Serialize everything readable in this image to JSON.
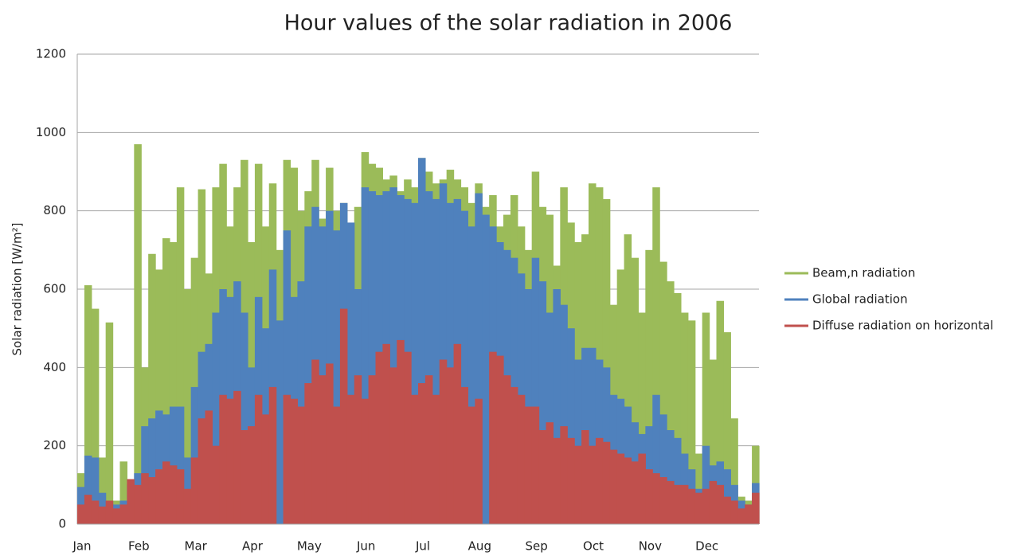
{
  "chart_data": {
    "type": "bar",
    "title": "Hour values of the solar radiation in 2006",
    "y_label": "Solar radiation [W/m²]",
    "categories": [
      "Jan",
      null,
      null,
      null,
      null,
      null,
      null,
      null,
      "Feb",
      null,
      null,
      null,
      null,
      null,
      null,
      null,
      "Mar",
      null,
      null,
      null,
      null,
      null,
      null,
      null,
      "Apr",
      null,
      null,
      null,
      null,
      null,
      null,
      null,
      "May",
      null,
      null,
      null,
      null,
      null,
      null,
      null,
      "Jun",
      null,
      null,
      null,
      null,
      null,
      null,
      null,
      "Jul",
      null,
      null,
      null,
      null,
      null,
      null,
      null,
      "Aug",
      null,
      null,
      null,
      null,
      null,
      null,
      null,
      "Sep",
      null,
      null,
      null,
      null,
      null,
      null,
      null,
      "Oct",
      null,
      null,
      null,
      null,
      null,
      null,
      null,
      "Nov",
      null,
      null,
      null,
      null,
      null,
      null,
      null,
      "Dec",
      null,
      null,
      null,
      null,
      null,
      null,
      null
    ],
    "series": [
      {
        "name": "Beam,n radiation",
        "color": "#9bbb59",
        "values": [
          130,
          610,
          550,
          170,
          515,
          60,
          160,
          110,
          970,
          400,
          690,
          650,
          730,
          720,
          860,
          600,
          680,
          855,
          640,
          860,
          920,
          760,
          860,
          930,
          720,
          920,
          760,
          870,
          700,
          930,
          910,
          800,
          850,
          930,
          780,
          910,
          800,
          820,
          700,
          810,
          950,
          920,
          910,
          880,
          890,
          850,
          880,
          860,
          935,
          900,
          870,
          880,
          905,
          880,
          860,
          820,
          870,
          810,
          840,
          760,
          790,
          840,
          760,
          700,
          900,
          810,
          790,
          660,
          860,
          770,
          720,
          740,
          870,
          860,
          830,
          560,
          650,
          740,
          680,
          540,
          700,
          860,
          670,
          620,
          590,
          540,
          520,
          180,
          540,
          420,
          570,
          490,
          270,
          70,
          60,
          200
        ]
      },
      {
        "name": "Global radiation",
        "color": "#4f81bd",
        "values": [
          95,
          175,
          170,
          80,
          60,
          50,
          60,
          100,
          130,
          250,
          270,
          290,
          280,
          300,
          300,
          170,
          350,
          440,
          460,
          540,
          600,
          580,
          620,
          540,
          400,
          580,
          500,
          650,
          520,
          750,
          580,
          620,
          760,
          810,
          760,
          800,
          750,
          820,
          770,
          600,
          860,
          850,
          840,
          850,
          860,
          840,
          830,
          820,
          935,
          850,
          830,
          870,
          820,
          830,
          800,
          760,
          845,
          790,
          760,
          720,
          700,
          680,
          640,
          600,
          680,
          620,
          540,
          600,
          560,
          500,
          420,
          450,
          450,
          420,
          400,
          330,
          320,
          300,
          260,
          230,
          250,
          330,
          280,
          240,
          220,
          180,
          140,
          90,
          200,
          150,
          160,
          140,
          100,
          60,
          50,
          105
        ]
      },
      {
        "name": "Diffuse radiation on horizontal",
        "color": "#c0504d",
        "values": [
          50,
          75,
          60,
          45,
          60,
          40,
          50,
          115,
          100,
          130,
          120,
          140,
          160,
          150,
          140,
          90,
          170,
          270,
          290,
          200,
          330,
          320,
          340,
          240,
          250,
          330,
          280,
          350,
          0,
          330,
          320,
          300,
          360,
          420,
          380,
          410,
          300,
          550,
          330,
          380,
          320,
          380,
          440,
          460,
          400,
          470,
          440,
          330,
          360,
          380,
          330,
          420,
          400,
          460,
          350,
          300,
          320,
          0,
          440,
          430,
          380,
          350,
          330,
          300,
          300,
          240,
          260,
          220,
          250,
          220,
          200,
          240,
          200,
          220,
          210,
          190,
          180,
          170,
          160,
          180,
          140,
          130,
          120,
          110,
          100,
          100,
          90,
          80,
          90,
          110,
          100,
          70,
          60,
          40,
          50,
          80
        ]
      }
    ],
    "ylim": [
      0,
      1200
    ],
    "yticks": [
      0,
      200,
      400,
      600,
      800,
      1000,
      1200
    ],
    "grid": true,
    "legend": "right"
  }
}
